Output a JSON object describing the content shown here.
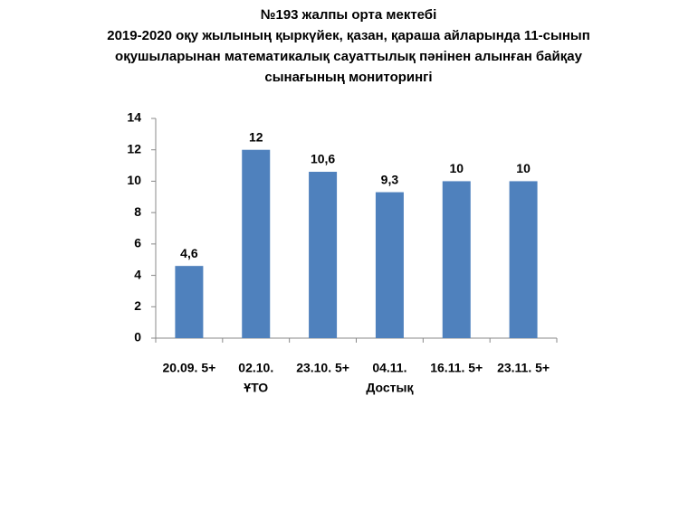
{
  "chart_data": {
    "type": "bar",
    "title": [
      "№193  жалпы орта  мектебі",
      "2019-2020  оқу жылының қыркүйек, қазан, қараша айларында 11-сынып",
      "оқушыларынан математикалық сауаттылық пәнінен алынған байқау",
      "сынағының мониторингі"
    ],
    "categories": [
      [
        "20.09. 5+"
      ],
      [
        "02.10.",
        "ҰТО"
      ],
      [
        "23.10. 5+"
      ],
      [
        "04.11.",
        "Достық"
      ],
      [
        "16.11. 5+"
      ],
      [
        "23.11. 5+"
      ]
    ],
    "values": [
      4.6,
      12,
      10.6,
      9.3,
      10,
      10
    ],
    "value_labels": [
      "4,6",
      "12",
      "10,6",
      "9,3",
      "10",
      "10"
    ],
    "color": "#4f81bd",
    "ylim": [
      0,
      14
    ],
    "yticks": [
      0,
      2,
      4,
      6,
      8,
      10,
      12,
      14
    ],
    "grid": false
  }
}
